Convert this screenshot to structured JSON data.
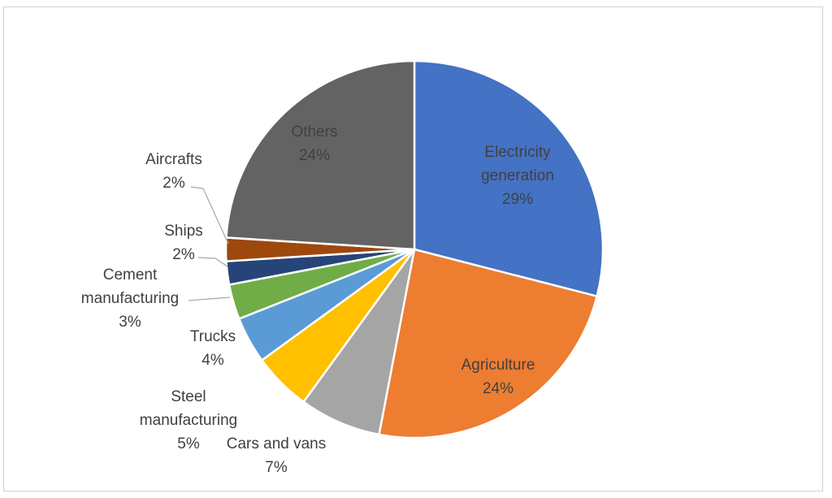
{
  "chart_data": {
    "type": "pie",
    "start_angle_deg": 0,
    "direction": "clockwise",
    "slices": [
      {
        "name": "Electricity generation",
        "label_lines": [
          "Electricity",
          "generation",
          "29%"
        ],
        "value": 29,
        "color": "#4472C4"
      },
      {
        "name": "Agriculture",
        "label_lines": [
          "Agriculture",
          "24%"
        ],
        "value": 24,
        "color": "#ED7D31"
      },
      {
        "name": "Cars and vans",
        "label_lines": [
          "Cars and vans",
          "7%"
        ],
        "value": 7,
        "color": "#A5A5A5"
      },
      {
        "name": "Steel manufacturing",
        "label_lines": [
          "Steel",
          "manufacturing",
          "5%"
        ],
        "value": 5,
        "color": "#FFC000"
      },
      {
        "name": "Trucks",
        "label_lines": [
          "Trucks",
          "4%"
        ],
        "value": 4,
        "color": "#5B9BD5"
      },
      {
        "name": "Cement manufacturing",
        "label_lines": [
          "Cement",
          "manufacturing",
          "3%"
        ],
        "value": 3,
        "color": "#70AD47"
      },
      {
        "name": "Ships",
        "label_lines": [
          "Ships",
          "2%"
        ],
        "value": 2,
        "color": "#264478"
      },
      {
        "name": "Aircrafts",
        "label_lines": [
          "Aircrafts",
          "2%"
        ],
        "value": 2,
        "color": "#9E480E"
      },
      {
        "name": "Others",
        "label_lines": [
          "Others",
          "24%"
        ],
        "value": 24,
        "color": "#636363"
      }
    ]
  }
}
